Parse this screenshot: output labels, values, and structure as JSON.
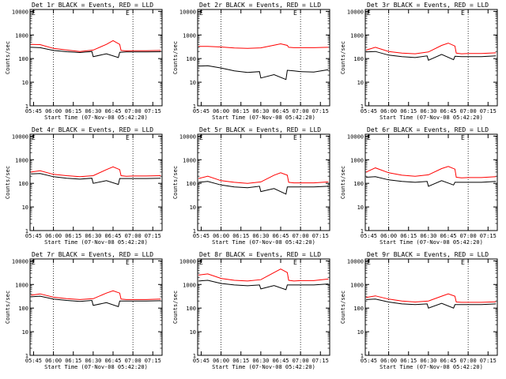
{
  "axes_common": {
    "xlabel": "Start Time (07-Nov-08 05:42:20)",
    "ylabel": "Counts/sec",
    "x_ticks": [
      "05:45",
      "06:00",
      "06:15",
      "06:30",
      "06:45",
      "07:00",
      "07:15"
    ],
    "y_ticks": [
      "1",
      "10",
      "100",
      "1000",
      "10000"
    ],
    "xlim": [
      "05:42:20",
      "07:22:00"
    ],
    "ylim": [
      1,
      12000
    ],
    "yscale": "log",
    "vertical_dotted_lines": [
      "06:00",
      "07:00"
    ],
    "marker_glyph": "E"
  },
  "colors": {
    "events": "#000000",
    "lld": "#ff0000"
  },
  "chart_data": [
    {
      "type": "line",
      "title": "Det 1r BLACK = Events, RED = LLD",
      "series": [
        {
          "name": "Events",
          "x": [
            "05:43",
            "05:50",
            "06:00",
            "06:10",
            "06:20",
            "06:29",
            "06:30",
            "06:40",
            "06:49",
            "06:50",
            "06:55",
            "07:00",
            "07:10",
            "07:21"
          ],
          "values": [
            300,
            290,
            220,
            195,
            180,
            200,
            120,
            160,
            110,
            185,
            190,
            190,
            190,
            195
          ]
        },
        {
          "name": "LLD",
          "x": [
            "05:43",
            "05:50",
            "06:00",
            "06:10",
            "06:20",
            "06:30",
            "06:40",
            "06:45",
            "06:50",
            "06:51",
            "06:55",
            "07:00",
            "07:10",
            "07:21"
          ],
          "values": [
            400,
            390,
            270,
            230,
            200,
            230,
            400,
            580,
            400,
            220,
            210,
            215,
            215,
            220
          ]
        }
      ]
    },
    {
      "type": "line",
      "title": "Det 2r BLACK = Events, RED = LLD",
      "series": [
        {
          "name": "Events",
          "x": [
            "05:43",
            "05:50",
            "06:00",
            "06:10",
            "06:20",
            "06:29",
            "06:30",
            "06:40",
            "06:49",
            "06:50",
            "06:55",
            "07:00",
            "07:10",
            "07:21"
          ],
          "values": [
            48,
            50,
            40,
            30,
            26,
            28,
            15,
            21,
            13,
            32,
            30,
            28,
            27,
            34
          ]
        },
        {
          "name": "LLD",
          "x": [
            "05:43",
            "05:50",
            "06:00",
            "06:10",
            "06:20",
            "06:30",
            "06:40",
            "06:45",
            "06:50",
            "06:51",
            "06:55",
            "07:00",
            "07:10",
            "07:21"
          ],
          "values": [
            330,
            330,
            310,
            280,
            270,
            285,
            370,
            420,
            360,
            300,
            290,
            290,
            290,
            300
          ]
        }
      ]
    },
    {
      "type": "line",
      "title": "Det 3r BLACK = Events, RED = LLD",
      "series": [
        {
          "name": "Events",
          "x": [
            "05:43",
            "05:50",
            "06:00",
            "06:10",
            "06:20",
            "06:29",
            "06:30",
            "06:40",
            "06:49",
            "06:50",
            "06:55",
            "07:00",
            "07:10",
            "07:21"
          ],
          "values": [
            190,
            200,
            140,
            120,
            110,
            130,
            85,
            150,
            90,
            125,
            120,
            120,
            120,
            130
          ]
        },
        {
          "name": "LLD",
          "x": [
            "05:43",
            "05:50",
            "06:00",
            "06:10",
            "06:20",
            "06:30",
            "06:40",
            "06:45",
            "06:50",
            "06:51",
            "06:55",
            "07:00",
            "07:10",
            "07:21"
          ],
          "values": [
            230,
            300,
            200,
            170,
            160,
            190,
            360,
            450,
            340,
            170,
            160,
            165,
            165,
            175
          ]
        }
      ]
    },
    {
      "type": "line",
      "title": "Det 4r BLACK = Events, RED = LLD",
      "series": [
        {
          "name": "Events",
          "x": [
            "05:43",
            "05:50",
            "06:00",
            "06:10",
            "06:20",
            "06:29",
            "06:30",
            "06:40",
            "06:49",
            "06:50",
            "06:55",
            "07:00",
            "07:10",
            "07:21"
          ],
          "values": [
            250,
            260,
            190,
            165,
            150,
            165,
            100,
            130,
            90,
            160,
            160,
            160,
            160,
            165
          ]
        },
        {
          "name": "LLD",
          "x": [
            "05:43",
            "05:50",
            "06:00",
            "06:10",
            "06:20",
            "06:30",
            "06:40",
            "06:45",
            "06:50",
            "06:51",
            "06:55",
            "07:00",
            "07:10",
            "07:21"
          ],
          "values": [
            300,
            340,
            240,
            210,
            190,
            210,
            380,
            500,
            380,
            210,
            200,
            205,
            205,
            210
          ]
        }
      ]
    },
    {
      "type": "line",
      "title": "Det 5r BLACK = Events, RED = LLD",
      "series": [
        {
          "name": "Events",
          "x": [
            "05:43",
            "05:50",
            "06:00",
            "06:10",
            "06:20",
            "06:29",
            "06:30",
            "06:40",
            "06:49",
            "06:50",
            "06:55",
            "07:00",
            "07:10",
            "07:21"
          ],
          "values": [
            110,
            120,
            85,
            70,
            65,
            75,
            45,
            60,
            35,
            70,
            70,
            70,
            70,
            75
          ]
        },
        {
          "name": "LLD",
          "x": [
            "05:43",
            "05:50",
            "06:00",
            "06:10",
            "06:20",
            "06:30",
            "06:40",
            "06:45",
            "06:50",
            "06:51",
            "06:55",
            "07:00",
            "07:10",
            "07:21"
          ],
          "values": [
            160,
            200,
            130,
            110,
            100,
            115,
            220,
            280,
            220,
            110,
            105,
            105,
            105,
            115
          ]
        }
      ]
    },
    {
      "type": "line",
      "title": "Det 6r BLACK = Events, RED = LLD",
      "series": [
        {
          "name": "Events",
          "x": [
            "05:43",
            "05:50",
            "06:00",
            "06:10",
            "06:20",
            "06:29",
            "06:30",
            "06:40",
            "06:49",
            "06:50",
            "06:55",
            "07:00",
            "07:10",
            "07:21"
          ],
          "values": [
            180,
            190,
            140,
            120,
            110,
            120,
            75,
            130,
            85,
            110,
            110,
            110,
            110,
            120
          ]
        },
        {
          "name": "LLD",
          "x": [
            "05:43",
            "05:50",
            "06:00",
            "06:10",
            "06:20",
            "06:30",
            "06:40",
            "06:45",
            "06:50",
            "06:51",
            "06:55",
            "07:00",
            "07:10",
            "07:21"
          ],
          "values": [
            300,
            450,
            280,
            220,
            200,
            230,
            420,
            520,
            400,
            180,
            170,
            175,
            175,
            190
          ]
        }
      ]
    },
    {
      "type": "line",
      "title": "Det 7r BLACK = Events, RED = LLD",
      "series": [
        {
          "name": "Events",
          "x": [
            "05:43",
            "05:50",
            "06:00",
            "06:10",
            "06:20",
            "06:29",
            "06:30",
            "06:40",
            "06:49",
            "06:50",
            "06:55",
            "07:00",
            "07:10",
            "07:21"
          ],
          "values": [
            300,
            320,
            240,
            210,
            190,
            210,
            130,
            170,
            115,
            200,
            200,
            200,
            200,
            205
          ]
        },
        {
          "name": "LLD",
          "x": [
            "05:43",
            "05:50",
            "06:00",
            "06:10",
            "06:20",
            "06:30",
            "06:40",
            "06:45",
            "06:50",
            "06:51",
            "06:55",
            "07:00",
            "07:10",
            "07:21"
          ],
          "values": [
            350,
            400,
            290,
            250,
            230,
            250,
            430,
            540,
            430,
            240,
            230,
            230,
            230,
            240
          ]
        }
      ]
    },
    {
      "type": "line",
      "title": "Det 8r BLACK = Events, RED = LLD",
      "series": [
        {
          "name": "Events",
          "x": [
            "05:43",
            "05:50",
            "06:00",
            "06:10",
            "06:20",
            "06:29",
            "06:30",
            "06:40",
            "06:49",
            "06:50",
            "06:55",
            "07:00",
            "07:10",
            "07:21"
          ],
          "values": [
            1400,
            1500,
            1100,
            950,
            880,
            950,
            650,
            900,
            600,
            950,
            950,
            950,
            950,
            1050
          ]
        },
        {
          "name": "LLD",
          "x": [
            "05:43",
            "05:50",
            "06:00",
            "06:10",
            "06:20",
            "06:30",
            "06:40",
            "06:45",
            "06:50",
            "06:51",
            "06:55",
            "07:00",
            "07:10",
            "07:21"
          ],
          "values": [
            2500,
            2800,
            1800,
            1500,
            1400,
            1600,
            3200,
            4500,
            3200,
            1500,
            1400,
            1450,
            1450,
            1700
          ]
        }
      ]
    },
    {
      "type": "line",
      "title": "Det 9r BLACK = Events, RED = LLD",
      "series": [
        {
          "name": "Events",
          "x": [
            "05:43",
            "05:50",
            "06:00",
            "06:10",
            "06:20",
            "06:29",
            "06:30",
            "06:40",
            "06:49",
            "06:50",
            "06:55",
            "07:00",
            "07:10",
            "07:21"
          ],
          "values": [
            230,
            240,
            180,
            150,
            140,
            150,
            100,
            160,
            100,
            140,
            140,
            140,
            140,
            150
          ]
        },
        {
          "name": "LLD",
          "x": [
            "05:43",
            "05:50",
            "06:00",
            "06:10",
            "06:20",
            "06:30",
            "06:40",
            "06:45",
            "06:50",
            "06:51",
            "06:55",
            "07:00",
            "07:10",
            "07:21"
          ],
          "values": [
            280,
            330,
            240,
            200,
            180,
            200,
            320,
            400,
            320,
            180,
            175,
            175,
            175,
            185
          ]
        }
      ]
    }
  ]
}
